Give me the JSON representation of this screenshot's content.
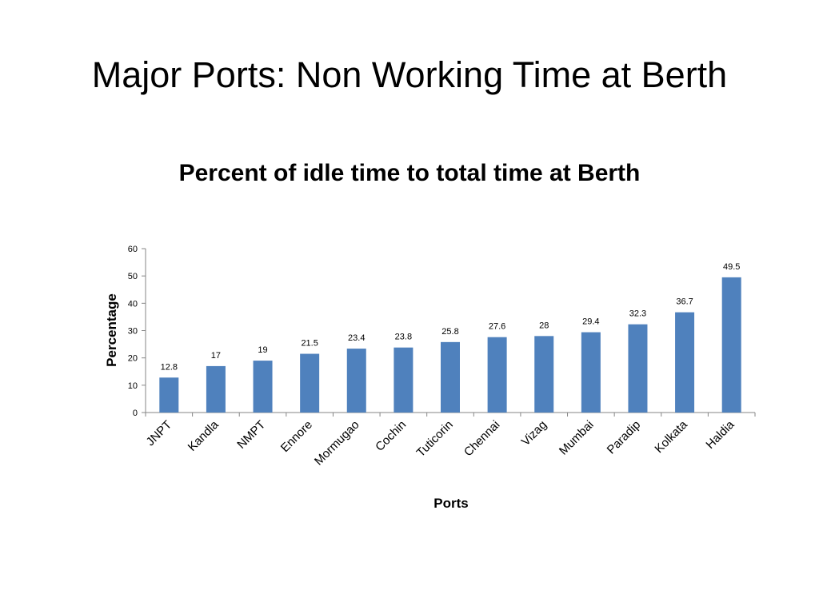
{
  "slide": {
    "title": "Major Ports: Non Working Time at Berth"
  },
  "chart_data": {
    "type": "bar",
    "title": "Percent of idle time to total time at Berth",
    "xlabel": "Ports",
    "ylabel": "Percentage",
    "categories": [
      "JNPT",
      "Kandla",
      "NMPT",
      "Ennore",
      "Mormugao",
      "Cochin",
      "Tuticorin",
      "Chennai",
      "Vizag",
      "Mumbai",
      "Paradip",
      "Kolkata",
      "Haldia"
    ],
    "values": [
      12.8,
      17,
      19,
      21.5,
      23.4,
      23.8,
      25.8,
      27.6,
      28,
      29.4,
      32.3,
      36.7,
      49.5
    ],
    "ylim": [
      0,
      60
    ],
    "yticks": [
      0,
      10,
      20,
      30,
      40,
      50,
      60
    ],
    "bar_color": "#4F81BD",
    "grid": false,
    "legend": "none"
  }
}
